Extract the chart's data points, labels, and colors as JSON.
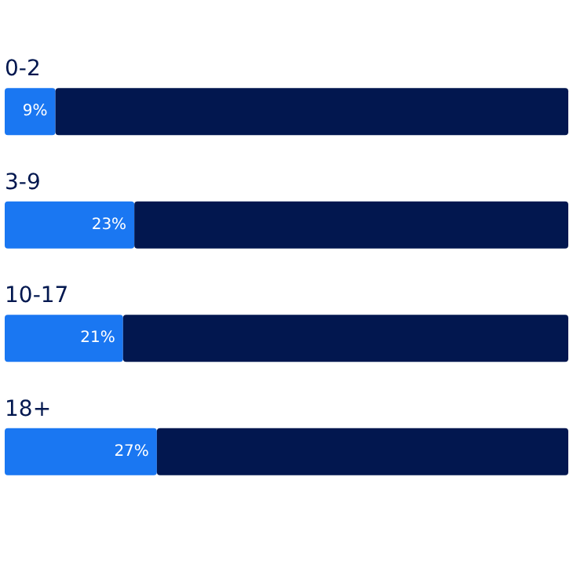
{
  "chart_data": {
    "type": "bar",
    "orientation": "horizontal",
    "stacked": true,
    "categories": [
      "0-2",
      "3-9",
      "10-17",
      "18+"
    ],
    "xlim": [
      0,
      100
    ],
    "tick_labels": "y",
    "grid": false,
    "series": [
      {
        "color": "#1a77f2",
        "values": [
          9,
          23,
          21,
          27
        ],
        "value_labels": [
          "9%",
          "23%",
          "21%",
          "27%"
        ]
      },
      {
        "color": "#02174f",
        "values": [
          91,
          77,
          79,
          73
        ]
      }
    ]
  }
}
